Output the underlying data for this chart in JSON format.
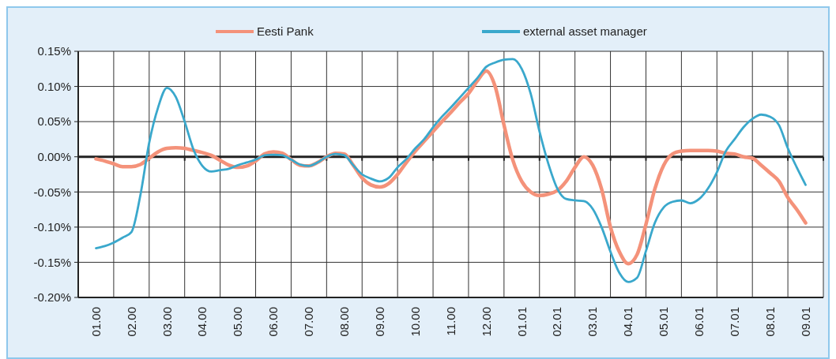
{
  "chart_data": {
    "type": "line",
    "categories": [
      "01.00",
      null,
      null,
      null,
      "02.00",
      null,
      null,
      null,
      "03.00",
      null,
      null,
      null,
      "04.00",
      null,
      null,
      null,
      "05.00",
      null,
      null,
      null,
      "06.00",
      null,
      null,
      null,
      "07.00",
      null,
      null,
      null,
      "08.00",
      null,
      null,
      null,
      "09.00",
      null,
      null,
      null,
      "10.00",
      null,
      null,
      null,
      "11.00",
      null,
      null,
      null,
      "12.00",
      null,
      null,
      null,
      "01.01",
      null,
      null,
      null,
      "02.01",
      null,
      null,
      null,
      "03.01",
      null,
      null,
      null,
      "04.01",
      null,
      null,
      null,
      "05.01",
      null,
      null,
      null,
      "06.01",
      null,
      null,
      null,
      "07.01",
      null,
      null,
      null,
      "08.01",
      null,
      null,
      null,
      "09.01"
    ],
    "series": [
      {
        "name": "Eesti Pank",
        "color": "#f4927a",
        "values": [
          -0.003,
          -0.006,
          -0.01,
          -0.014,
          -0.014,
          -0.011,
          -0.002,
          0.007,
          0.012,
          0.013,
          0.012,
          0.009,
          0.006,
          0.002,
          -0.005,
          -0.012,
          -0.015,
          -0.013,
          -0.006,
          0.004,
          0.007,
          0.005,
          -0.004,
          -0.012,
          -0.013,
          -0.008,
          0.0,
          0.005,
          0.004,
          -0.012,
          -0.03,
          -0.04,
          -0.043,
          -0.038,
          -0.025,
          -0.008,
          0.008,
          0.022,
          0.036,
          0.05,
          0.063,
          0.077,
          0.09,
          0.108,
          0.122,
          0.1,
          0.045,
          -0.005,
          -0.035,
          -0.05,
          -0.055,
          -0.053,
          -0.048,
          -0.035,
          -0.015,
          0.0,
          -0.012,
          -0.046,
          -0.1,
          -0.135,
          -0.152,
          -0.139,
          -0.096,
          -0.046,
          -0.012,
          0.004,
          0.008,
          0.009,
          0.009,
          0.009,
          0.008,
          0.005,
          0.004,
          0.0,
          -0.002,
          -0.012,
          -0.023,
          -0.035,
          -0.058,
          -0.075,
          -0.094
        ]
      },
      {
        "name": "external asset manager",
        "color": "#3aa8cc",
        "values": [
          -0.13,
          -0.127,
          -0.122,
          -0.115,
          -0.107,
          -0.055,
          0.02,
          0.07,
          0.098,
          0.085,
          0.05,
          0.01,
          -0.013,
          -0.021,
          -0.019,
          -0.017,
          -0.012,
          -0.008,
          -0.004,
          0.002,
          0.003,
          0.002,
          -0.004,
          -0.011,
          -0.013,
          -0.008,
          0.0,
          0.004,
          0.002,
          -0.012,
          -0.025,
          -0.031,
          -0.035,
          -0.03,
          -0.015,
          -0.003,
          0.012,
          0.025,
          0.042,
          0.057,
          0.07,
          0.084,
          0.098,
          0.112,
          0.128,
          0.134,
          0.138,
          0.139,
          0.125,
          0.09,
          0.036,
          -0.01,
          -0.045,
          -0.06,
          -0.062,
          -0.063,
          -0.074,
          -0.1,
          -0.135,
          -0.165,
          -0.178,
          -0.172,
          -0.134,
          -0.094,
          -0.072,
          -0.064,
          -0.062,
          -0.066,
          -0.06,
          -0.045,
          -0.022,
          0.008,
          0.025,
          0.042,
          0.054,
          0.06,
          0.057,
          0.045,
          0.012,
          -0.015,
          -0.04
        ]
      }
    ],
    "ylim": [
      -0.2,
      0.15
    ],
    "yticks": [
      {
        "value": -0.2,
        "label": "-0.20%"
      },
      {
        "value": -0.15,
        "label": "-0.15%"
      },
      {
        "value": -0.1,
        "label": "-0.10%"
      },
      {
        "value": -0.05,
        "label": "-0.05%"
      },
      {
        "value": 0,
        "label": "0.00%"
      },
      {
        "value": 0.05,
        "label": "0.05%"
      },
      {
        "value": 0.1,
        "label": "0.10%"
      },
      {
        "value": 0.15,
        "label": "0.15%"
      }
    ],
    "grid": true,
    "legend": "top",
    "line_style": "solid",
    "marker": "none"
  }
}
